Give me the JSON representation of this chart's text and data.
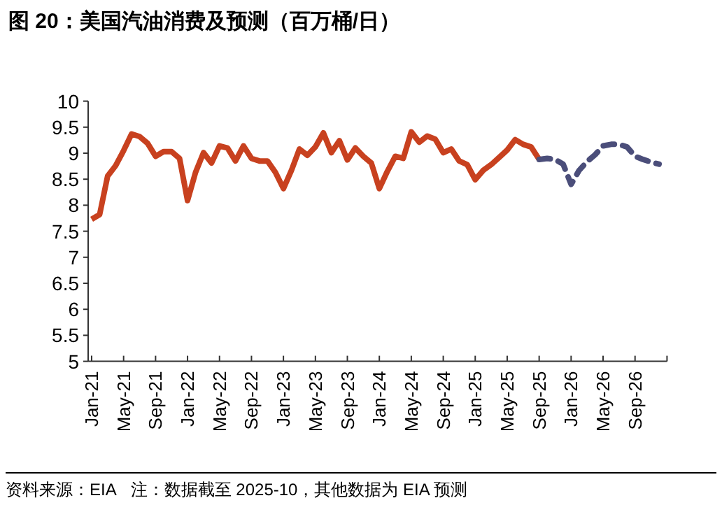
{
  "chart_data": {
    "type": "line",
    "title": "图 20：美国汽油消费及预测（百万桶/日）",
    "x": [
      "2021-01",
      "2021-02",
      "2021-03",
      "2021-04",
      "2021-05",
      "2021-06",
      "2021-07",
      "2021-08",
      "2021-09",
      "2021-10",
      "2021-11",
      "2021-12",
      "2022-01",
      "2022-02",
      "2022-03",
      "2022-04",
      "2022-05",
      "2022-06",
      "2022-07",
      "2022-08",
      "2022-09",
      "2022-10",
      "2022-11",
      "2022-12",
      "2023-01",
      "2023-02",
      "2023-03",
      "2023-04",
      "2023-05",
      "2023-06",
      "2023-07",
      "2023-08",
      "2023-09",
      "2023-10",
      "2023-11",
      "2023-12",
      "2024-01",
      "2024-02",
      "2024-03",
      "2024-04",
      "2024-05",
      "2024-06",
      "2024-07",
      "2024-08",
      "2024-09",
      "2024-10",
      "2024-11",
      "2024-12",
      "2025-01",
      "2025-02",
      "2025-03",
      "2025-04",
      "2025-05",
      "2025-06",
      "2025-07",
      "2025-08",
      "2025-09",
      "2025-10",
      "2025-11",
      "2025-12",
      "2026-01",
      "2026-02",
      "2026-03",
      "2026-04",
      "2026-05",
      "2026-06",
      "2026-07",
      "2026-08",
      "2026-09",
      "2026-10",
      "2026-11",
      "2026-12"
    ],
    "xlim": [
      "2021-01",
      "2027-01"
    ],
    "xticks": [
      {
        "value": "2021-01",
        "label": "Jan-21"
      },
      {
        "value": "2021-05",
        "label": "May-21"
      },
      {
        "value": "2021-09",
        "label": "Sep-21"
      },
      {
        "value": "2022-01",
        "label": "Jan-22"
      },
      {
        "value": "2022-05",
        "label": "May-22"
      },
      {
        "value": "2022-09",
        "label": "Sep-22"
      },
      {
        "value": "2023-01",
        "label": "Jan-23"
      },
      {
        "value": "2023-05",
        "label": "May-23"
      },
      {
        "value": "2023-09",
        "label": "Sep-23"
      },
      {
        "value": "2024-01",
        "label": "Jan-24"
      },
      {
        "value": "2024-05",
        "label": "May-24"
      },
      {
        "value": "2024-09",
        "label": "Sep-24"
      },
      {
        "value": "2025-01",
        "label": "Jan-25"
      },
      {
        "value": "2025-05",
        "label": "May-25"
      },
      {
        "value": "2025-09",
        "label": "Sep-25"
      },
      {
        "value": "2026-01",
        "label": "Jan-26"
      },
      {
        "value": "2026-05",
        "label": "May-26"
      },
      {
        "value": "2026-09",
        "label": "Sep-26"
      },
      {
        "value": "2027-01",
        "label": null
      }
    ],
    "ylim": [
      5,
      10
    ],
    "yticks": [
      5,
      5.5,
      6,
      6.5,
      7,
      7.5,
      8,
      8.5,
      9,
      9.5,
      10
    ],
    "series": [
      {
        "color": "#c8411f",
        "line_style": "solid",
        "values": [
          7.73,
          7.82,
          8.56,
          8.76,
          9.05,
          9.37,
          9.32,
          9.19,
          8.94,
          9.03,
          9.03,
          8.9,
          8.09,
          8.63,
          9.01,
          8.81,
          9.14,
          9.1,
          8.85,
          9.14,
          8.9,
          8.85,
          8.85,
          8.63,
          8.32,
          8.67,
          9.08,
          8.96,
          9.12,
          9.39,
          9.01,
          9.24,
          8.87,
          9.1,
          8.94,
          8.81,
          8.32,
          8.65,
          8.94,
          8.9,
          9.41,
          9.21,
          9.33,
          9.27,
          9.01,
          9.08,
          8.85,
          8.78,
          8.49,
          8.67,
          8.78,
          8.92,
          9.06,
          9.26,
          9.17,
          9.12,
          8.88,
          null,
          null,
          null,
          null,
          null,
          null,
          null,
          null,
          null,
          null,
          null,
          null,
          null,
          null,
          null
        ]
      },
      {
        "color": "#4b4e7a",
        "line_style": "dashed",
        "values": [
          null,
          null,
          null,
          null,
          null,
          null,
          null,
          null,
          null,
          null,
          null,
          null,
          null,
          null,
          null,
          null,
          null,
          null,
          null,
          null,
          null,
          null,
          null,
          null,
          null,
          null,
          null,
          null,
          null,
          null,
          null,
          null,
          null,
          null,
          null,
          null,
          null,
          null,
          null,
          null,
          null,
          null,
          null,
          null,
          null,
          null,
          null,
          null,
          null,
          null,
          null,
          null,
          null,
          null,
          null,
          null,
          8.88,
          8.9,
          8.88,
          8.79,
          8.4,
          8.67,
          8.84,
          8.97,
          9.14,
          9.17,
          9.17,
          9.12,
          8.94,
          8.88,
          8.83,
          8.79
        ]
      }
    ],
    "annotations": [
      "资料来源：EIA",
      "注：数据截至 2025-10，其他数据为 EIA 预测"
    ]
  }
}
